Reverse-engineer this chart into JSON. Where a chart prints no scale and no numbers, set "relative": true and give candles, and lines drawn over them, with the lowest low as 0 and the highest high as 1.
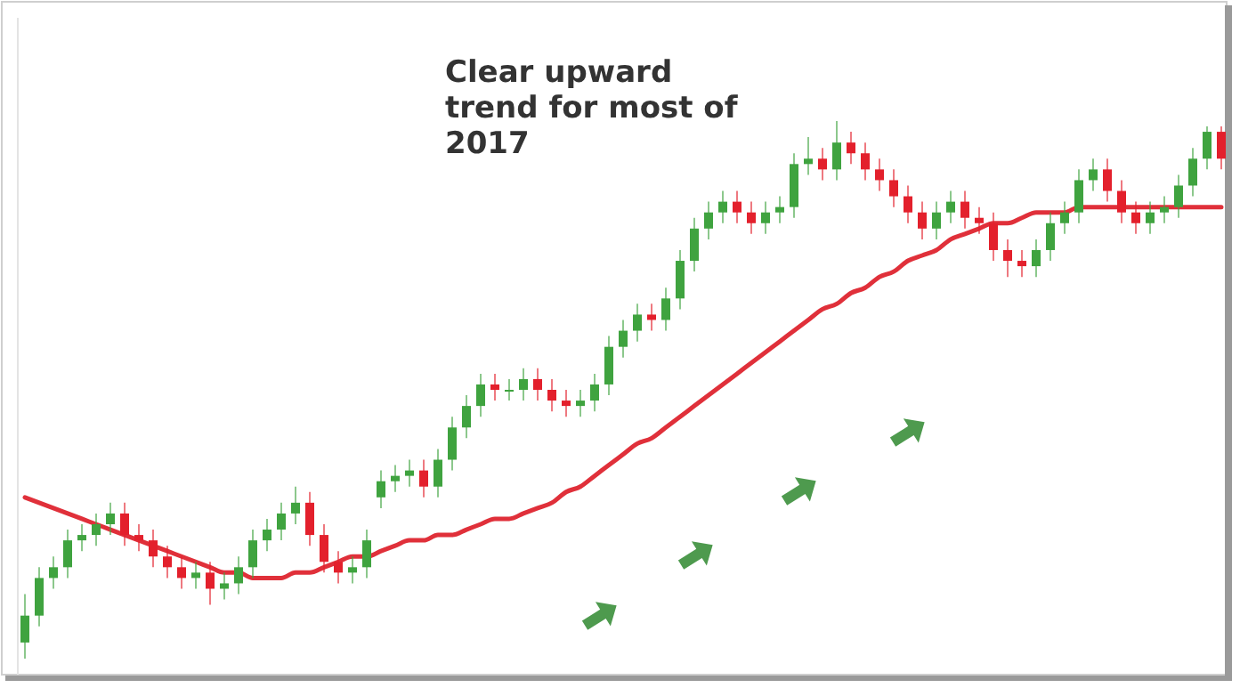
{
  "chart_data": {
    "type": "candlestick",
    "relative": true,
    "annotations": [
      "Clear upward trend for most of 2017"
    ],
    "categories": [
      null,
      null,
      null,
      null,
      null,
      null,
      null,
      null,
      null,
      null,
      null,
      null,
      null,
      null,
      null,
      null,
      null,
      null,
      null,
      null,
      null,
      null,
      null,
      null,
      null,
      null,
      null,
      null,
      null,
      null,
      null,
      null,
      null,
      null,
      null,
      null,
      null,
      null,
      null,
      null,
      null,
      null,
      null,
      null,
      null,
      null,
      null,
      null,
      null,
      null,
      null,
      null,
      null,
      null,
      null,
      null,
      null,
      null,
      null,
      null,
      null,
      null,
      null,
      null,
      null,
      null,
      null,
      null,
      null,
      null,
      null,
      null,
      null,
      null,
      null,
      null,
      null,
      null,
      null,
      null,
      null,
      null,
      null,
      null,
      null
    ],
    "ohlc": [
      [
        0.03,
        0.12,
        0.0,
        0.08
      ],
      [
        0.08,
        0.17,
        0.06,
        0.15
      ],
      [
        0.15,
        0.19,
        0.13,
        0.17
      ],
      [
        0.17,
        0.24,
        0.15,
        0.22
      ],
      [
        0.22,
        0.25,
        0.2,
        0.23
      ],
      [
        0.23,
        0.27,
        0.21,
        0.25
      ],
      [
        0.25,
        0.29,
        0.23,
        0.27
      ],
      [
        0.27,
        0.29,
        0.21,
        0.23
      ],
      [
        0.23,
        0.25,
        0.2,
        0.22
      ],
      [
        0.22,
        0.24,
        0.17,
        0.19
      ],
      [
        0.19,
        0.21,
        0.15,
        0.17
      ],
      [
        0.17,
        0.19,
        0.13,
        0.15
      ],
      [
        0.15,
        0.18,
        0.13,
        0.16
      ],
      [
        0.16,
        0.18,
        0.1,
        0.13
      ],
      [
        0.13,
        0.16,
        0.11,
        0.14
      ],
      [
        0.14,
        0.19,
        0.12,
        0.17
      ],
      [
        0.17,
        0.24,
        0.15,
        0.22
      ],
      [
        0.22,
        0.26,
        0.2,
        0.24
      ],
      [
        0.24,
        0.29,
        0.22,
        0.27
      ],
      [
        0.27,
        0.32,
        0.25,
        0.29
      ],
      [
        0.29,
        0.31,
        0.21,
        0.23
      ],
      [
        0.23,
        0.25,
        0.16,
        0.18
      ],
      [
        0.18,
        0.2,
        0.14,
        0.16
      ],
      [
        0.16,
        0.19,
        0.14,
        0.17
      ],
      [
        0.17,
        0.24,
        0.15,
        0.22
      ],
      [
        0.3,
        0.35,
        0.28,
        0.33
      ],
      [
        0.33,
        0.36,
        0.31,
        0.34
      ],
      [
        0.34,
        0.37,
        0.32,
        0.35
      ],
      [
        0.35,
        0.37,
        0.3,
        0.32
      ],
      [
        0.32,
        0.39,
        0.3,
        0.37
      ],
      [
        0.37,
        0.45,
        0.35,
        0.43
      ],
      [
        0.43,
        0.49,
        0.41,
        0.47
      ],
      [
        0.47,
        0.53,
        0.45,
        0.51
      ],
      [
        0.51,
        0.53,
        0.48,
        0.5
      ],
      [
        0.5,
        0.52,
        0.48,
        0.5
      ],
      [
        0.5,
        0.54,
        0.48,
        0.52
      ],
      [
        0.52,
        0.54,
        0.48,
        0.5
      ],
      [
        0.5,
        0.52,
        0.46,
        0.48
      ],
      [
        0.48,
        0.5,
        0.45,
        0.47
      ],
      [
        0.47,
        0.5,
        0.45,
        0.48
      ],
      [
        0.48,
        0.53,
        0.46,
        0.51
      ],
      [
        0.51,
        0.6,
        0.49,
        0.58
      ],
      [
        0.58,
        0.63,
        0.56,
        0.61
      ],
      [
        0.61,
        0.66,
        0.59,
        0.64
      ],
      [
        0.64,
        0.66,
        0.61,
        0.63
      ],
      [
        0.63,
        0.69,
        0.61,
        0.67
      ],
      [
        0.67,
        0.76,
        0.65,
        0.74
      ],
      [
        0.74,
        0.82,
        0.72,
        0.8
      ],
      [
        0.8,
        0.85,
        0.78,
        0.83
      ],
      [
        0.83,
        0.87,
        0.81,
        0.85
      ],
      [
        0.85,
        0.87,
        0.81,
        0.83
      ],
      [
        0.83,
        0.85,
        0.79,
        0.81
      ],
      [
        0.81,
        0.85,
        0.79,
        0.83
      ],
      [
        0.83,
        0.86,
        0.81,
        0.84
      ],
      [
        0.84,
        0.94,
        0.82,
        0.92
      ],
      [
        0.92,
        0.97,
        0.9,
        0.93
      ],
      [
        0.93,
        0.95,
        0.89,
        0.91
      ],
      [
        0.91,
        1.0,
        0.89,
        0.96
      ],
      [
        0.96,
        0.98,
        0.92,
        0.94
      ],
      [
        0.94,
        0.96,
        0.89,
        0.91
      ],
      [
        0.91,
        0.93,
        0.87,
        0.89
      ],
      [
        0.89,
        0.91,
        0.84,
        0.86
      ],
      [
        0.86,
        0.88,
        0.81,
        0.83
      ],
      [
        0.83,
        0.85,
        0.78,
        0.8
      ],
      [
        0.8,
        0.85,
        0.78,
        0.83
      ],
      [
        0.83,
        0.87,
        0.81,
        0.85
      ],
      [
        0.85,
        0.87,
        0.8,
        0.82
      ],
      [
        0.82,
        0.84,
        0.79,
        0.81
      ],
      [
        0.81,
        0.83,
        0.74,
        0.76
      ],
      [
        0.76,
        0.78,
        0.71,
        0.74
      ],
      [
        0.74,
        0.76,
        0.71,
        0.73
      ],
      [
        0.73,
        0.78,
        0.71,
        0.76
      ],
      [
        0.76,
        0.83,
        0.74,
        0.81
      ],
      [
        0.81,
        0.85,
        0.79,
        0.83
      ],
      [
        0.83,
        0.91,
        0.81,
        0.89
      ],
      [
        0.89,
        0.93,
        0.87,
        0.91
      ],
      [
        0.91,
        0.93,
        0.85,
        0.87
      ],
      [
        0.87,
        0.89,
        0.81,
        0.83
      ],
      [
        0.83,
        0.85,
        0.79,
        0.81
      ],
      [
        0.81,
        0.85,
        0.79,
        0.83
      ],
      [
        0.83,
        0.86,
        0.81,
        0.84
      ],
      [
        0.84,
        0.9,
        0.82,
        0.88
      ],
      [
        0.88,
        0.95,
        0.86,
        0.93
      ],
      [
        0.93,
        0.99,
        0.91,
        0.98
      ],
      [
        0.98,
        0.99,
        0.91,
        0.93
      ]
    ],
    "series": [
      {
        "type": "line",
        "color": "#e0303a",
        "values": [
          0.3,
          0.29,
          0.28,
          0.27,
          0.26,
          0.25,
          0.24,
          0.23,
          0.22,
          0.21,
          0.2,
          0.19,
          0.18,
          0.17,
          0.16,
          0.16,
          0.15,
          0.15,
          0.15,
          0.16,
          0.16,
          0.17,
          0.18,
          0.19,
          0.19,
          0.2,
          0.21,
          0.22,
          0.22,
          0.23,
          0.23,
          0.24,
          0.25,
          0.26,
          0.26,
          0.27,
          0.28,
          0.29,
          0.31,
          0.32,
          0.34,
          0.36,
          0.38,
          0.4,
          0.41,
          0.43,
          0.45,
          0.47,
          0.49,
          0.51,
          0.53,
          0.55,
          0.57,
          0.59,
          0.61,
          0.63,
          0.65,
          0.66,
          0.68,
          0.69,
          0.71,
          0.72,
          0.74,
          0.75,
          0.76,
          0.78,
          0.79,
          0.8,
          0.81,
          0.81,
          0.82,
          0.83,
          0.83,
          0.83,
          0.84,
          0.84,
          0.84,
          0.84,
          0.84,
          0.84,
          0.84,
          0.84,
          0.84,
          0.84,
          0.84
        ]
      }
    ]
  }
}
